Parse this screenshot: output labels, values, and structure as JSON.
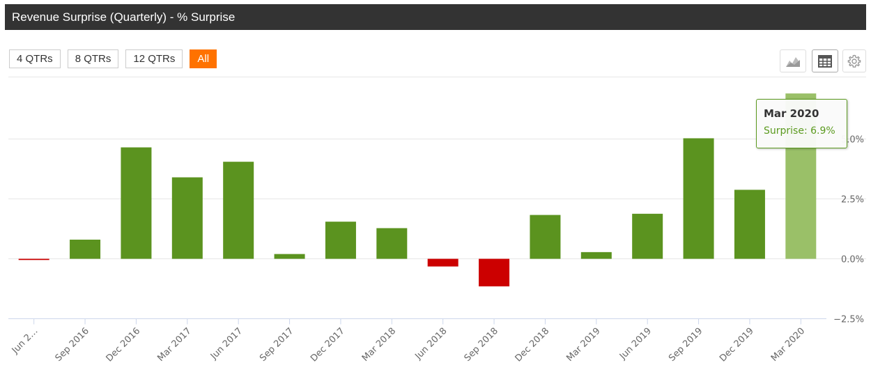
{
  "header": {
    "title": "Revenue Surprise (Quarterly) - % Surprise"
  },
  "range_buttons": [
    {
      "label": "4 QTRs",
      "active": false
    },
    {
      "label": "8 QTRs",
      "active": false
    },
    {
      "label": "12 QTRs",
      "active": false
    },
    {
      "label": "All",
      "active": true
    }
  ],
  "toolbar": {
    "icons": [
      "area-chart-icon",
      "table-icon",
      "gear-icon"
    ]
  },
  "colors": {
    "positive": "#5b931f",
    "negative": "#cc0000",
    "highlight": "#9ac068",
    "accent": "#ff7200"
  },
  "tooltip": {
    "title": "Mar 2020",
    "label": "Surprise",
    "value": "6.9%"
  },
  "chart_data": {
    "type": "bar",
    "categories": [
      "Jun 2…",
      "Sep 2016",
      "Dec 2016",
      "Mar 2017",
      "Jun 2017",
      "Sep 2017",
      "Dec 2017",
      "Mar 2018",
      "Jun 2018",
      "Sep 2018",
      "Dec 2018",
      "Mar 2019",
      "Jun 2019",
      "Sep 2019",
      "Dec 2019",
      "Mar 2020"
    ],
    "values": [
      -0.05,
      0.8,
      4.65,
      3.4,
      4.05,
      0.2,
      1.55,
      1.28,
      -0.32,
      -1.15,
      1.83,
      0.28,
      1.88,
      5.03,
      2.88,
      6.9
    ],
    "highlighted_index": 15,
    "y_ticks": [
      -2.5,
      0,
      2.5,
      5
    ],
    "y_tick_labels": [
      "−2.5%",
      "0.0%",
      "2.5%",
      "5.0%"
    ],
    "ylim": [
      -2.5,
      7.5
    ],
    "grid": true,
    "y_axis_position": "right"
  }
}
